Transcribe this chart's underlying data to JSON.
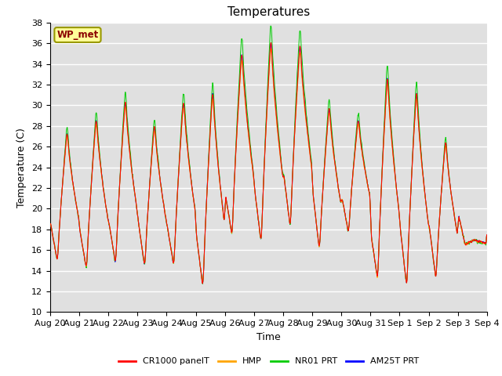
{
  "title": "Temperatures",
  "xlabel": "Time",
  "ylabel": "Temperature (C)",
  "ylim": [
    10,
    38
  ],
  "annotation": "WP_met",
  "legend_labels": [
    "CR1000 panelT",
    "HMP",
    "NR01 PRT",
    "AM25T PRT"
  ],
  "legend_colors": [
    "#ff0000",
    "#ffa500",
    "#00cc00",
    "#0000ff"
  ],
  "background_color": "#e0e0e0",
  "grid_color": "#ffffff",
  "tick_labels": [
    "Aug 20",
    "Aug 21",
    "Aug 22",
    "Aug 23",
    "Aug 24",
    "Aug 25",
    "Aug 26",
    "Aug 27",
    "Aug 28",
    "Aug 29",
    "Aug 30",
    "Aug 31",
    "Sep 1",
    "Sep 2",
    "Sep 3",
    "Sep 4"
  ],
  "day_min_temps": [
    14.8,
    14.0,
    14.5,
    14.2,
    14.3,
    12.2,
    17.2,
    16.5,
    18.0,
    15.8,
    17.5,
    13.0,
    12.2,
    13.0,
    16.5
  ],
  "day_max_temps": [
    27.8,
    29.2,
    31.0,
    28.6,
    31.0,
    32.0,
    35.8,
    37.0,
    36.5,
    30.3,
    29.0,
    33.5,
    32.0,
    27.0,
    17.0
  ],
  "title_fontsize": 11,
  "axis_fontsize": 9,
  "tick_fontsize": 8
}
